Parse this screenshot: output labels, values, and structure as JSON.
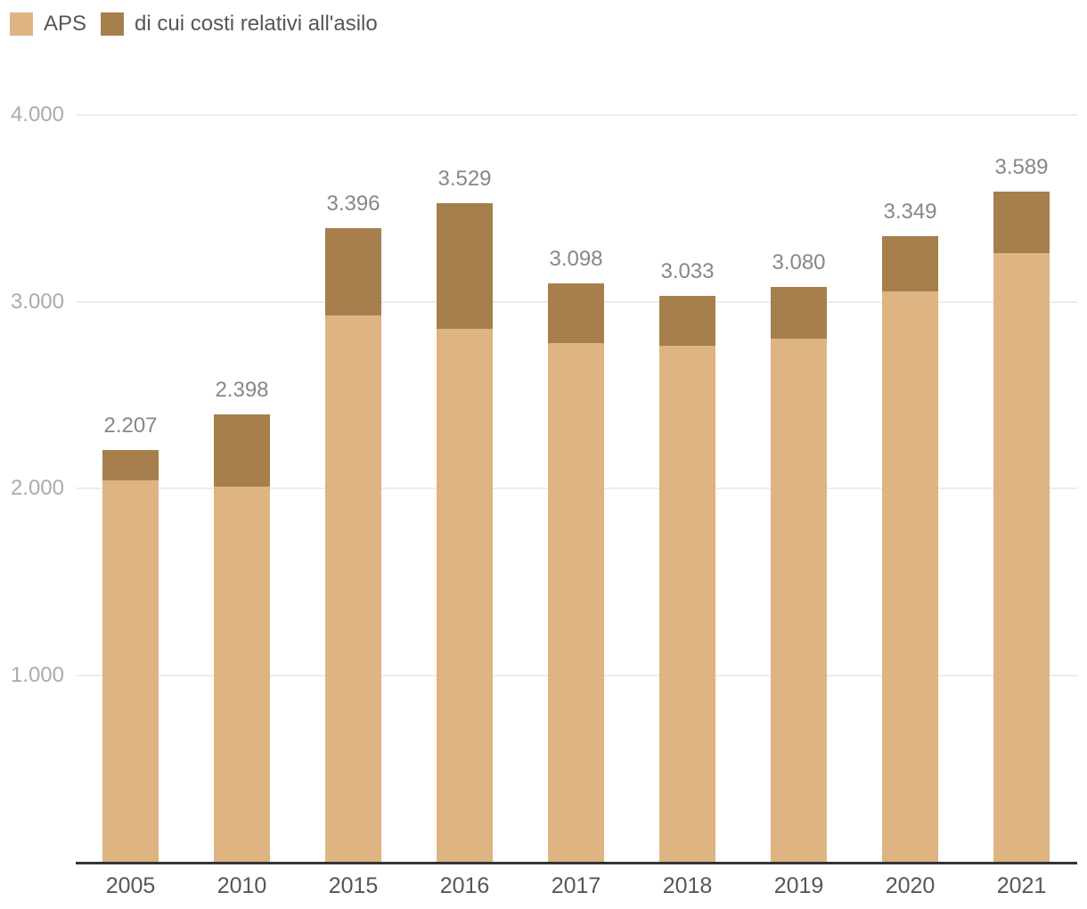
{
  "legend": {
    "items": [
      {
        "label": "APS",
        "color": "#DEB482",
        "swatch_icon": "square-swatch"
      },
      {
        "label": "di cui costi relativi all'asilo",
        "color": "#A67F4D",
        "swatch_icon": "square-swatch"
      }
    ]
  },
  "colors": {
    "aps_bar": "#DEB482",
    "asylum_bar": "#A67F4D",
    "gridline": "#ECECEC",
    "axis_line": "#333538",
    "value_label": "#85878A",
    "x_label": "#54575A",
    "y_label": "#ABABAB",
    "background": "#FFFFFF"
  },
  "chart_data": {
    "type": "bar",
    "stacked": true,
    "title": "",
    "xlabel": "",
    "ylabel": "",
    "grid": true,
    "legend_position": "top-left",
    "categories": [
      "2005",
      "2010",
      "2015",
      "2016",
      "2017",
      "2018",
      "2019",
      "2020",
      "2021"
    ],
    "series": [
      {
        "name": "APS",
        "role": "total",
        "color": "#DEB482",
        "values": [
          2207,
          2398,
          3396,
          3529,
          3098,
          3033,
          3080,
          3349,
          3589
        ],
        "labels": [
          "2.207",
          "2.398",
          "3.396",
          "3.529",
          "3.098",
          "3.033",
          "3.080",
          "3.349",
          "3.589"
        ]
      },
      {
        "name": "di cui costi relativi all'asilo",
        "role": "component-of-total",
        "color": "#A67F4D",
        "note": "values estimated from bar segment heights; not labeled in chart",
        "values": [
          165,
          387,
          470,
          675,
          320,
          270,
          280,
          295,
          330
        ]
      }
    ],
    "value_labels_shown": "totals above bars",
    "yaxis": {
      "range": [
        0,
        4000
      ],
      "ticks": [
        {
          "value": 1000,
          "label": "1.000"
        },
        {
          "value": 2000,
          "label": "2.000"
        },
        {
          "value": 3000,
          "label": "3.000"
        },
        {
          "value": 4000,
          "label": "4.000"
        }
      ]
    }
  }
}
